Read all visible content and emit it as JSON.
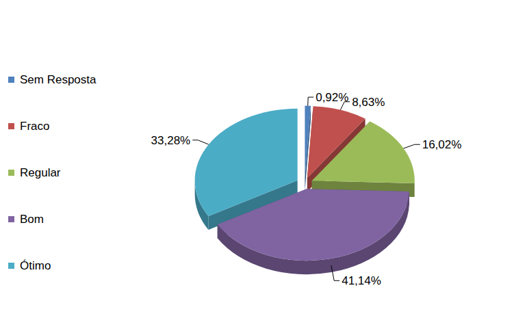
{
  "chart_data": {
    "type": "pie",
    "categories": [
      "Sem Resposta",
      "Fraco",
      "Regular",
      "Bom",
      "Ótimo"
    ],
    "values": [
      0.92,
      8.63,
      16.02,
      41.14,
      33.28
    ],
    "value_labels": [
      "0,92%",
      "8,63%",
      "16,02%",
      "41,14%",
      "33,28%"
    ],
    "colors": [
      "#4f81bd",
      "#c0504d",
      "#9bbb59",
      "#8064a2",
      "#4bacc6"
    ],
    "data_labels": true,
    "legend": "left"
  }
}
